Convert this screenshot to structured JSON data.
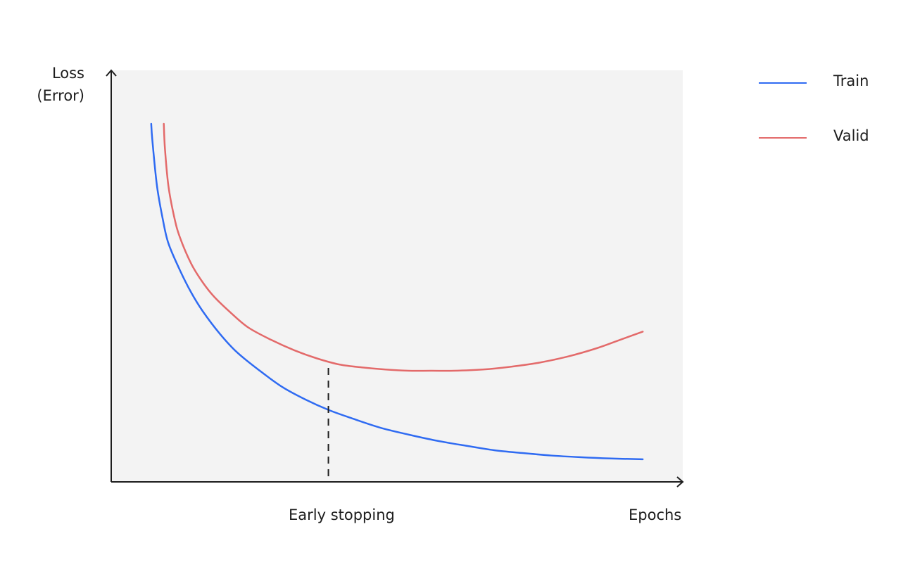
{
  "chart_data": {
    "type": "line",
    "ylabel_lines": [
      "Loss",
      "(Error)"
    ],
    "xlabel": "Epochs",
    "annotation": {
      "label": "Early stopping",
      "x": 0.38,
      "style": "dashed vertical line"
    },
    "xlim": [
      0,
      1
    ],
    "ylim": [
      0,
      1
    ],
    "grid": false,
    "axis_ticks": false,
    "legend": {
      "placement": "right-top"
    },
    "colors": {
      "plot_background": "#f3f3f3",
      "axis": "#1d1d1d",
      "train": "#2f6bf2",
      "valid": "#e36a6a"
    },
    "series": [
      {
        "name": "Train",
        "color": "#2f6bf2",
        "x": [
          0.07,
          0.072,
          0.08,
          0.09,
          0.1,
          0.12,
          0.14,
          0.16,
          0.19,
          0.22,
          0.26,
          0.3,
          0.34,
          0.38,
          0.42,
          0.47,
          0.52,
          0.57,
          0.62,
          0.67,
          0.72,
          0.77,
          0.82,
          0.87,
          0.93
        ],
        "y": [
          0.87,
          0.83,
          0.72,
          0.64,
          0.58,
          0.515,
          0.46,
          0.415,
          0.36,
          0.315,
          0.27,
          0.23,
          0.2,
          0.175,
          0.155,
          0.132,
          0.115,
          0.1,
          0.088,
          0.077,
          0.07,
          0.064,
          0.06,
          0.057,
          0.055
        ]
      },
      {
        "name": "Valid",
        "color": "#e36a6a",
        "x": [
          0.092,
          0.094,
          0.1,
          0.11,
          0.12,
          0.14,
          0.16,
          0.18,
          0.21,
          0.24,
          0.28,
          0.32,
          0.36,
          0.4,
          0.44,
          0.48,
          0.52,
          0.56,
          0.6,
          0.65,
          0.7,
          0.75,
          0.8,
          0.85,
          0.89,
          0.93
        ],
        "y": [
          0.87,
          0.81,
          0.72,
          0.645,
          0.595,
          0.53,
          0.485,
          0.45,
          0.41,
          0.375,
          0.345,
          0.32,
          0.3,
          0.285,
          0.278,
          0.273,
          0.27,
          0.27,
          0.27,
          0.273,
          0.28,
          0.29,
          0.305,
          0.325,
          0.345,
          0.365
        ]
      }
    ]
  }
}
